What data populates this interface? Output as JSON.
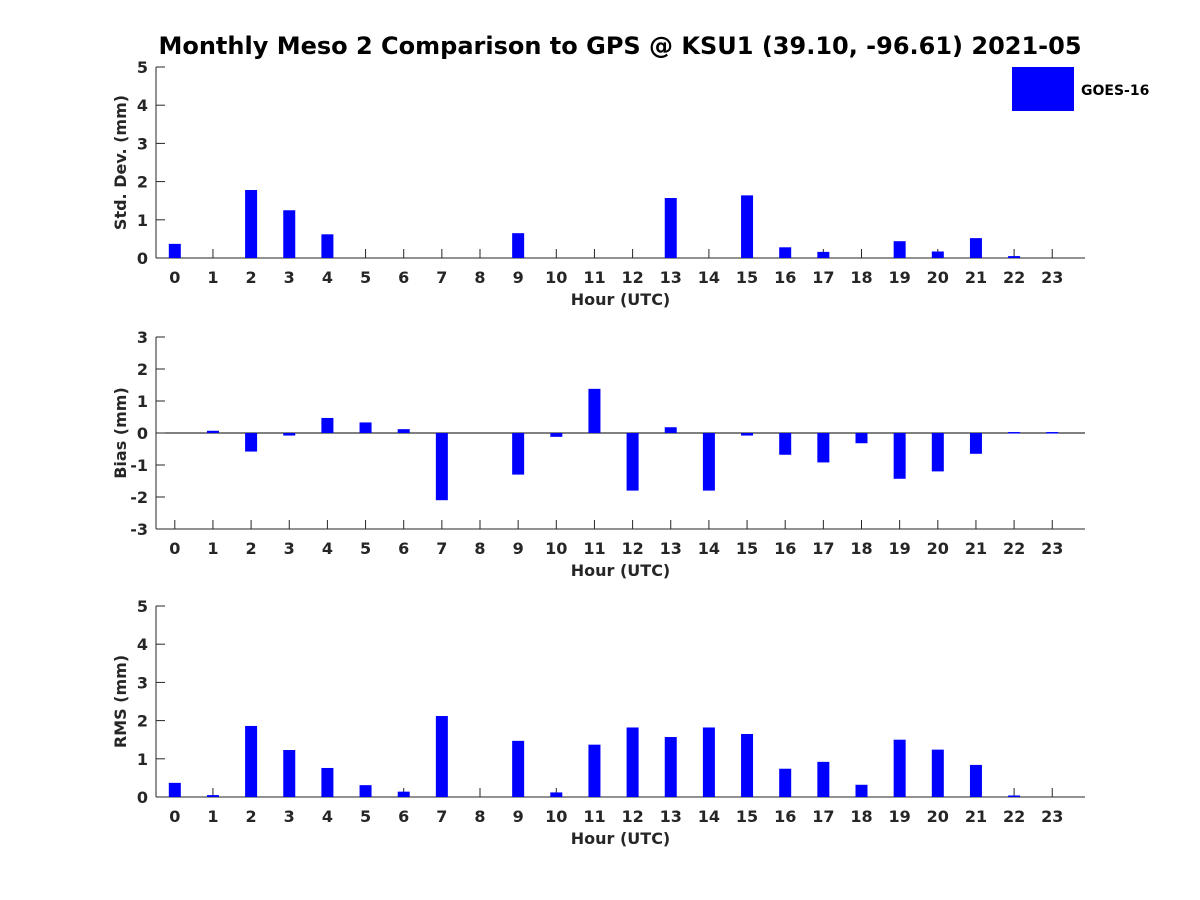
{
  "figure": {
    "title": "Monthly Meso 2 Comparison to GPS @ KSU1 (39.10, -96.61) 2021-05"
  },
  "legend": {
    "label": "GOES-16",
    "color": "#0000ff",
    "placement": "top-right"
  },
  "chart_data": [
    {
      "type": "bar",
      "xlabel": "Hour (UTC)",
      "ylabel": "Std. Dev. (mm)",
      "ylim": [
        0,
        5
      ],
      "yticks": [
        0,
        1,
        2,
        3,
        4,
        5
      ],
      "categories": [
        "0",
        "1",
        "2",
        "3",
        "4",
        "5",
        "6",
        "7",
        "8",
        "9",
        "10",
        "11",
        "12",
        "13",
        "14",
        "15",
        "16",
        "17",
        "18",
        "19",
        "20",
        "21",
        "22",
        "23"
      ],
      "series": [
        {
          "name": "GOES-16",
          "color": "#0000ff",
          "values": [
            0.37,
            0,
            1.78,
            1.25,
            0.62,
            0,
            0,
            0,
            0,
            0.65,
            0,
            0,
            0,
            1.57,
            0,
            1.64,
            0.28,
            0.16,
            0,
            0.44,
            0.17,
            0.52,
            0.05,
            0
          ]
        }
      ]
    },
    {
      "type": "bar",
      "xlabel": "Hour (UTC)",
      "ylabel": "Bias (mm)",
      "ylim": [
        -3,
        3
      ],
      "yticks": [
        -3,
        -2,
        -1,
        0,
        1,
        2,
        3
      ],
      "categories": [
        "0",
        "1",
        "2",
        "3",
        "4",
        "5",
        "6",
        "7",
        "8",
        "9",
        "10",
        "11",
        "12",
        "13",
        "14",
        "15",
        "16",
        "17",
        "18",
        "19",
        "20",
        "21",
        "22",
        "23"
      ],
      "series": [
        {
          "name": "GOES-16",
          "color": "#0000ff",
          "values": [
            0,
            0.07,
            -0.58,
            -0.08,
            0.47,
            0.33,
            0.12,
            -2.1,
            0,
            -1.3,
            -0.12,
            1.38,
            -1.8,
            0.18,
            -1.8,
            -0.08,
            -0.68,
            -0.92,
            -0.32,
            -1.43,
            -1.2,
            -0.65,
            0.03,
            0.03
          ]
        }
      ]
    },
    {
      "type": "bar",
      "xlabel": "Hour (UTC)",
      "ylabel": "RMS (mm)",
      "ylim": [
        0,
        5
      ],
      "yticks": [
        0,
        1,
        2,
        3,
        4,
        5
      ],
      "categories": [
        "0",
        "1",
        "2",
        "3",
        "4",
        "5",
        "6",
        "7",
        "8",
        "9",
        "10",
        "11",
        "12",
        "13",
        "14",
        "15",
        "16",
        "17",
        "18",
        "19",
        "20",
        "21",
        "22",
        "23"
      ],
      "series": [
        {
          "name": "GOES-16",
          "color": "#0000ff",
          "values": [
            0.37,
            0.05,
            1.86,
            1.23,
            0.76,
            0.31,
            0.14,
            2.12,
            0,
            1.47,
            0.12,
            1.37,
            1.82,
            1.57,
            1.82,
            1.65,
            0.74,
            0.92,
            0.32,
            1.5,
            1.24,
            0.84,
            0.04,
            0
          ]
        }
      ]
    }
  ]
}
